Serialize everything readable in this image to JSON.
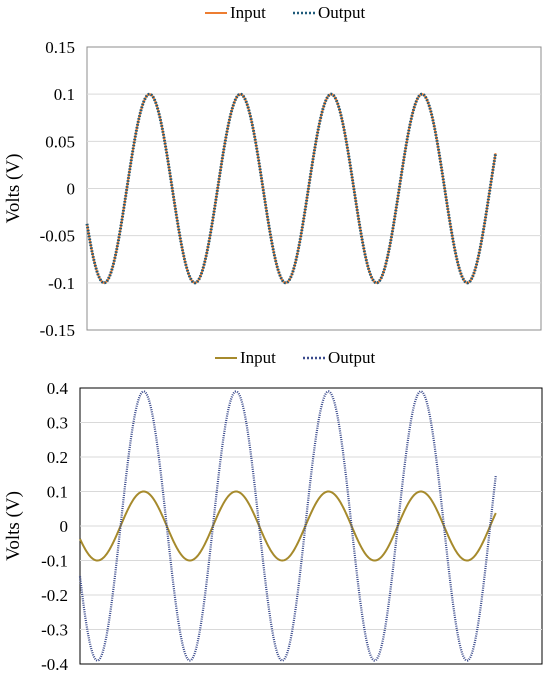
{
  "chart_data": [
    {
      "type": "line",
      "title": "",
      "xlabel": "",
      "ylabel": "Volts (V)",
      "ylim": [
        -0.15,
        0.15
      ],
      "yticks": [
        0.15,
        0.1,
        0.05,
        0,
        -0.05,
        -0.1,
        -0.15
      ],
      "ytick_labels": [
        "0.15",
        "0.1",
        "0.05",
        "0",
        "-0.05",
        "-0.1",
        "-0.15"
      ],
      "grid": true,
      "legend": "top-center",
      "cycles": 5,
      "x_range": [
        0,
        1
      ],
      "x_end": 0.9,
      "phase_deg": 22,
      "series": [
        {
          "name": "Input",
          "amplitude": 0.1,
          "color": "#ED7D31",
          "style": "solid"
        },
        {
          "name": "Output",
          "amplitude": 0.1,
          "color": "#1F5A7A",
          "style": "dotted"
        }
      ]
    },
    {
      "type": "line",
      "title": "",
      "xlabel": "",
      "ylabel": "Volts (V)",
      "ylim": [
        -0.4,
        0.4
      ],
      "yticks": [
        0.4,
        0.3,
        0.2,
        0.1,
        0,
        -0.1,
        -0.2,
        -0.3,
        -0.4
      ],
      "ytick_labels": [
        "0.4",
        "0.3",
        "0.2",
        "0.1",
        "0",
        "-0.1",
        "-0.2",
        "-0.3",
        "-0.4"
      ],
      "grid": true,
      "legend": "top-center",
      "cycles": 5,
      "x_range": [
        0,
        1
      ],
      "x_end": 0.9,
      "phase_deg": 22,
      "series": [
        {
          "name": "Input",
          "amplitude": 0.1,
          "color": "#A68A2C",
          "style": "solid"
        },
        {
          "name": "Output",
          "amplitude": 0.39,
          "color": "#3A4A8C",
          "style": "dotted"
        }
      ]
    }
  ]
}
